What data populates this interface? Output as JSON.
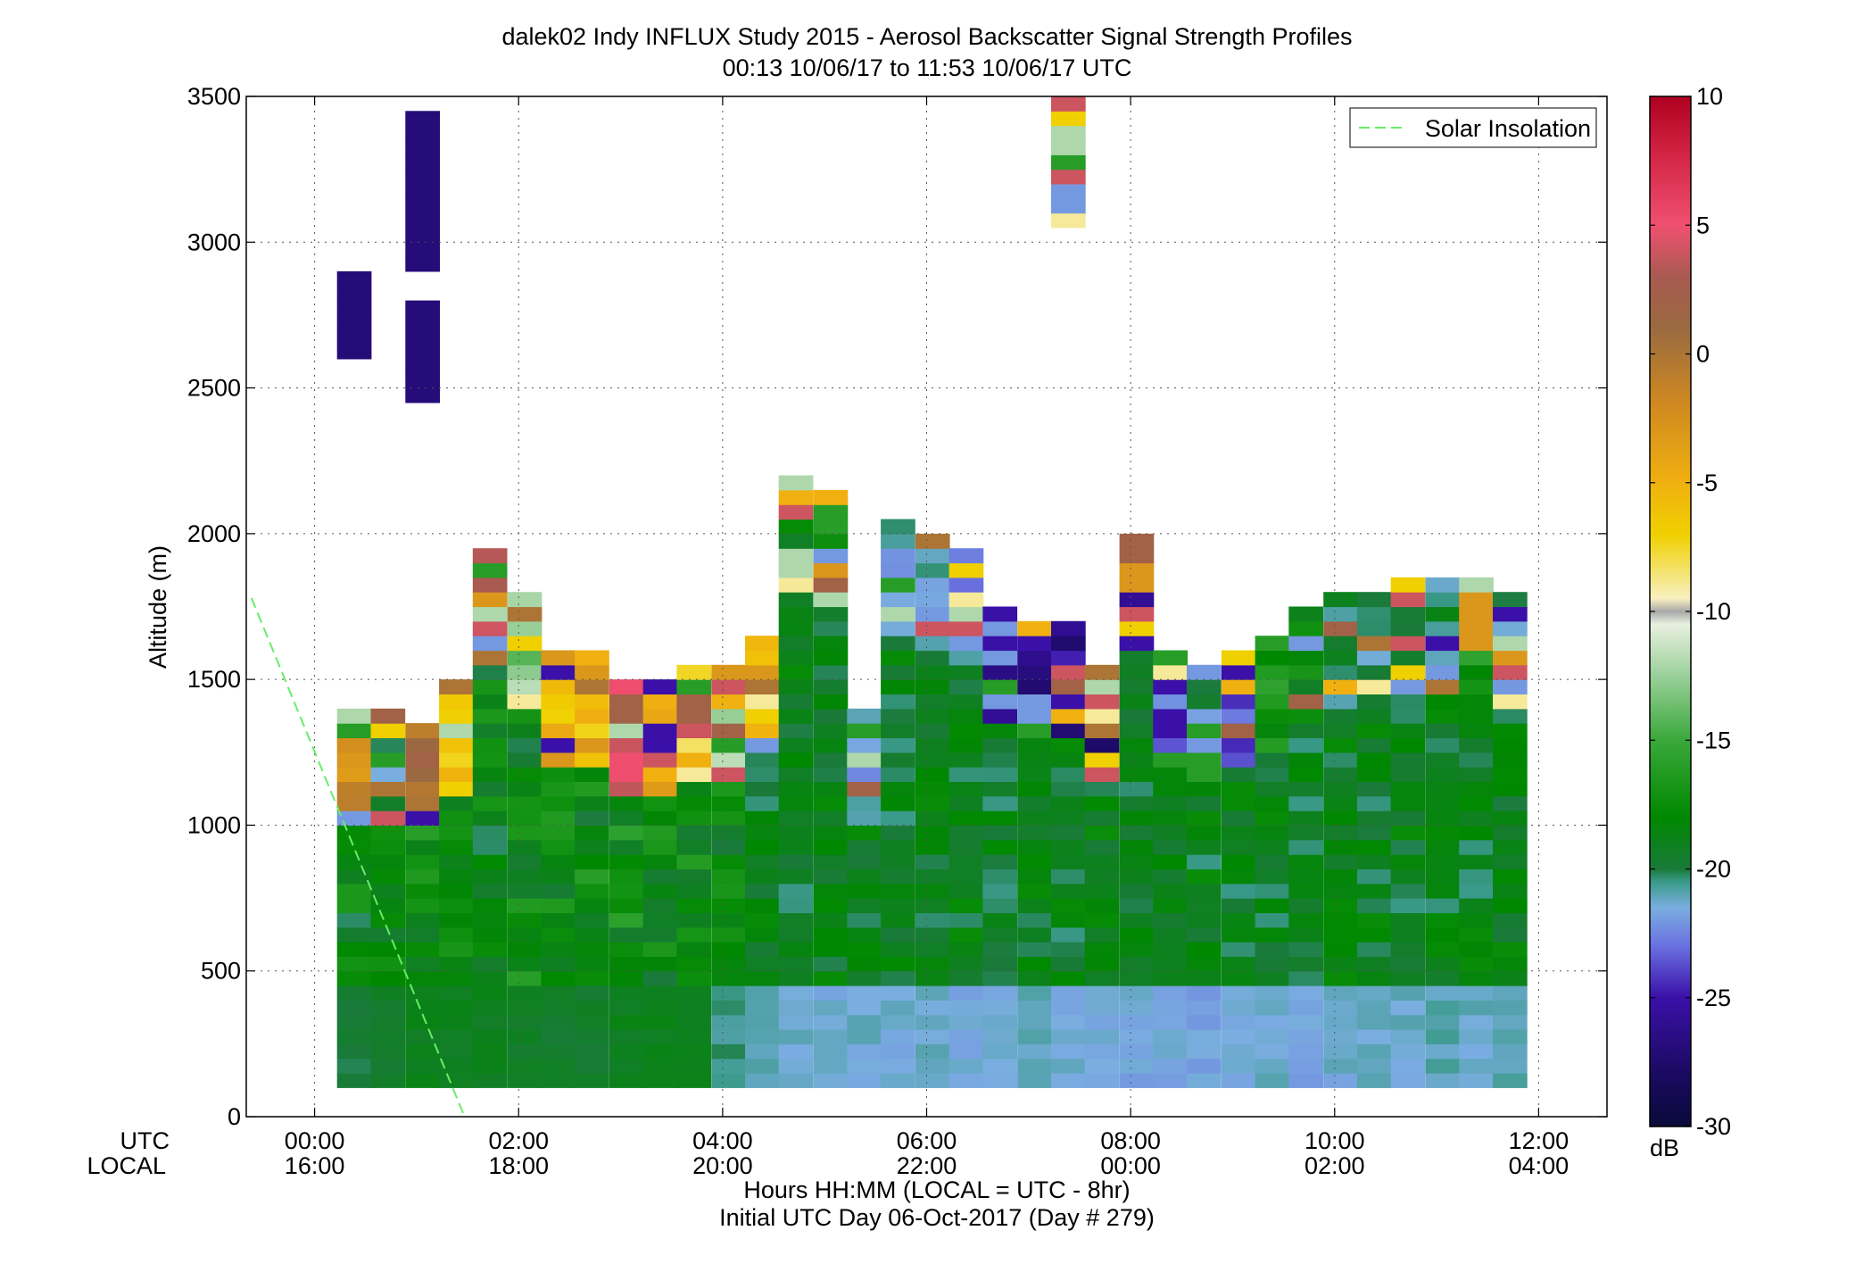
{
  "title_line1": "dalek02 Indy INFLUX Study 2015 - Aerosol Backscatter Signal Strength Profiles",
  "title_line2": "00:13 10/06/17 to 11:53 10/06/17  UTC",
  "ylabel": "Altitude (m)",
  "xaxis_row_labels": {
    "utc": "UTC",
    "local": "LOCAL"
  },
  "xlabel_line1": "Hours HH:MM  (LOCAL = UTC - 8hr)",
  "xlabel_line2": "Initial UTC Day 06-Oct-2017 (Day # 279)",
  "legend": {
    "label": "Solar Insolation",
    "position": "top-right"
  },
  "colorbar": {
    "unit_label": "dB",
    "min": -30,
    "max": 10,
    "ticks": [
      {
        "value": 10,
        "label": "10"
      },
      {
        "value": 5,
        "label": "5"
      },
      {
        "value": 0,
        "label": "0"
      },
      {
        "value": -5,
        "label": "-5"
      },
      {
        "value": -10,
        "label": "-10"
      },
      {
        "value": -15,
        "label": "-15"
      },
      {
        "value": -20,
        "label": "-20"
      },
      {
        "value": -25,
        "label": "-25"
      },
      {
        "value": -30,
        "label": "-30"
      }
    ],
    "stops": [
      {
        "value": -30,
        "color": "#0a0a3a"
      },
      {
        "value": -28,
        "color": "#1a0a60"
      },
      {
        "value": -25,
        "color": "#3a10a8"
      },
      {
        "value": -23,
        "color": "#6a70e0"
      },
      {
        "value": -21.5,
        "color": "#7aaee0"
      },
      {
        "value": -20.5,
        "color": "#3a9a8a"
      },
      {
        "value": -20,
        "color": "#1a7a3a"
      },
      {
        "value": -18,
        "color": "#008800"
      },
      {
        "value": -15,
        "color": "#3aa83a"
      },
      {
        "value": -12.5,
        "color": "#9ad09a"
      },
      {
        "value": -10.5,
        "color": "#e8f0e0"
      },
      {
        "value": -10,
        "color": "#a8a8a8"
      },
      {
        "value": -9.5,
        "color": "#f8f0c0"
      },
      {
        "value": -7,
        "color": "#f0d000"
      },
      {
        "value": -5,
        "color": "#f0b010"
      },
      {
        "value": -2,
        "color": "#d08a20"
      },
      {
        "value": 1,
        "color": "#9a6a40"
      },
      {
        "value": 3,
        "color": "#a85a50"
      },
      {
        "value": 5,
        "color": "#f05070"
      },
      {
        "value": 8,
        "color": "#d02040"
      },
      {
        "value": 10,
        "color": "#b00020"
      }
    ]
  },
  "colors": {
    "solar_line": "#66ee66",
    "grid": "#555555",
    "background": "#ffffff"
  },
  "chart_data": {
    "type": "heatmap",
    "title": "dalek02 Indy INFLUX Study 2015 - Aerosol Backscatter Signal Strength Profiles",
    "xlabel": "Hours HH:MM  (LOCAL = UTC - 8hr)",
    "ylabel": "Altitude (m)",
    "xlim_hours": [
      -0.67,
      12.67
    ],
    "ylim": [
      0,
      3500
    ],
    "grid": true,
    "x_ticks": [
      {
        "hour": 0,
        "utc": "00:00",
        "local": "16:00"
      },
      {
        "hour": 2,
        "utc": "02:00",
        "local": "18:00"
      },
      {
        "hour": 4,
        "utc": "04:00",
        "local": "20:00"
      },
      {
        "hour": 6,
        "utc": "06:00",
        "local": "22:00"
      },
      {
        "hour": 8,
        "utc": "08:00",
        "local": "00:00"
      },
      {
        "hour": 10,
        "utc": "10:00",
        "local": "02:00"
      },
      {
        "hour": 12,
        "utc": "12:00",
        "local": "04:00"
      }
    ],
    "y_ticks": [
      0,
      500,
      1000,
      1500,
      2000,
      2500,
      3000,
      3500
    ],
    "value_units": "dB",
    "value_range": [
      -30,
      10
    ],
    "column_start_hours": [
      0.22,
      0.55,
      0.89,
      1.22,
      1.55,
      1.89,
      2.22,
      2.55,
      2.89,
      3.22,
      3.55,
      3.89,
      4.22,
      4.55,
      4.89,
      5.22,
      5.55,
      5.89,
      6.22,
      6.55,
      6.89,
      7.22,
      7.55,
      7.89,
      8.22,
      8.55,
      8.89,
      9.22,
      9.55,
      9.89,
      10.22,
      10.55,
      10.89,
      11.22,
      11.55
    ],
    "column_width_hours": 0.333,
    "bin_height_m": 50,
    "profile_bottom_m": 100,
    "profile_tops_m": [
      1400,
      1400,
      1350,
      1500,
      1950,
      1800,
      1600,
      1600,
      1500,
      1500,
      1550,
      1550,
      1650,
      2200,
      2150,
      1400,
      2050,
      2000,
      1950,
      1750,
      1700,
      1700,
      1550,
      2000,
      1600,
      1550,
      1600,
      1650,
      1750,
      1800,
      1800,
      1850,
      1850,
      1850,
      1800
    ],
    "cap_values_db": [
      -2,
      -20,
      0,
      -6,
      3,
      -13,
      -6,
      -6,
      4,
      -4,
      -8,
      -12,
      -6,
      -19,
      -17,
      -22,
      -21,
      -21,
      -22,
      -26,
      -26,
      -26,
      -27,
      -27,
      -23,
      -21,
      -24,
      -17,
      -18,
      -20,
      -20,
      -20,
      -20,
      -17,
      -20
    ],
    "surface_values_db": [
      -20,
      -19.5,
      -19,
      -19,
      -19,
      -19.5,
      -19.5,
      -19.5,
      -19,
      -19,
      -19,
      -20.5,
      -20.8,
      -21.2,
      -21.5,
      -21.3,
      -21.4,
      -21.2,
      -21.6,
      -21.4,
      -21.2,
      -21.5,
      -21.4,
      -21.6,
      -21.5,
      -21.7,
      -21.5,
      -21.3,
      -21.8,
      -21.4,
      -21.2,
      -21.3,
      -21.0,
      -21.2,
      -21.1
    ],
    "upper_isolated_blocks": [
      {
        "start_hour": 0.22,
        "bottom_m": 2600,
        "top_m": 2900,
        "value_db": -27
      },
      {
        "start_hour": 0.89,
        "bottom_m": 2900,
        "top_m": 3450,
        "value_db": -27
      },
      {
        "start_hour": 0.89,
        "bottom_m": 2450,
        "top_m": 2800,
        "value_db": -27
      },
      {
        "start_hour": 7.22,
        "bottom_m": 3050,
        "top_m": 3500,
        "value_db": -12
      }
    ],
    "solar_insolation_line": [
      {
        "hour": -0.62,
        "altitude_m": 1780
      },
      {
        "hour": 1.47,
        "altitude_m": 0
      }
    ]
  }
}
